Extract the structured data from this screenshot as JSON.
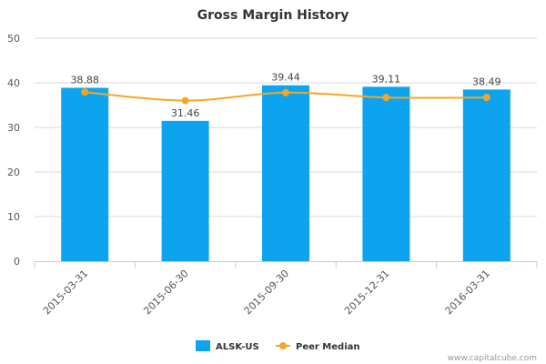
{
  "chart_data": {
    "type": "bar",
    "title": "Gross Margin History",
    "categories": [
      "2015-03-31",
      "2015-06-30",
      "2015-09-30",
      "2015-12-31",
      "2016-03-31"
    ],
    "series": [
      {
        "name": "ALSK-US",
        "type": "bar",
        "color": "#0da3ee",
        "values": [
          38.88,
          31.46,
          39.44,
          39.11,
          38.49
        ],
        "data_labels": [
          "38.88",
          "31.46",
          "39.44",
          "39.11",
          "38.49"
        ]
      },
      {
        "name": "Peer Median",
        "type": "line",
        "color": "#f5a623",
        "values": [
          37.9,
          36.0,
          37.8,
          36.7,
          36.7
        ]
      }
    ],
    "ylim": [
      0,
      50
    ],
    "yticks": [
      "0",
      "10",
      "20",
      "30",
      "40",
      "50"
    ],
    "grid": true,
    "legend": "bottom-center"
  },
  "credit": "www.capitalcube.com"
}
